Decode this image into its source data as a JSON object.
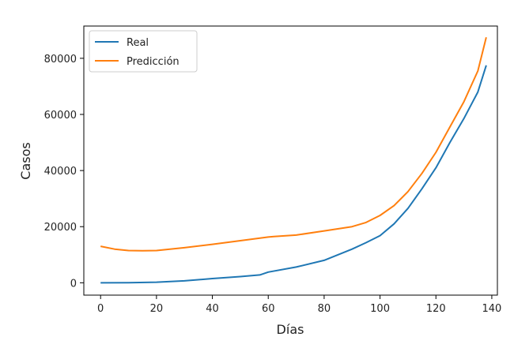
{
  "chart_data": {
    "type": "line",
    "xlabel": "Días",
    "ylabel": "Casos",
    "xlim": [
      -6,
      142
    ],
    "ylim": [
      -4400,
      91500
    ],
    "xticks": [
      0,
      20,
      40,
      60,
      80,
      100,
      120,
      140
    ],
    "yticks": [
      0,
      20000,
      40000,
      60000,
      80000
    ],
    "legend_position": "top-left",
    "grid": false,
    "series": [
      {
        "name": "Real",
        "color": "#1f77b4",
        "x": [
          0,
          10,
          20,
          30,
          40,
          50,
          57,
          60,
          70,
          80,
          90,
          95,
          100,
          105,
          110,
          115,
          120,
          125,
          130,
          135,
          138
        ],
        "y": [
          0,
          50,
          200,
          700,
          1500,
          2200,
          2800,
          3800,
          5600,
          8000,
          12000,
          14300,
          16800,
          21000,
          26500,
          33500,
          41000,
          50000,
          58500,
          68000,
          77500
        ]
      },
      {
        "name": "Predicción",
        "color": "#ff7f0e",
        "x": [
          0,
          5,
          10,
          15,
          20,
          30,
          40,
          50,
          60,
          62,
          70,
          80,
          90,
          95,
          100,
          105,
          110,
          115,
          120,
          125,
          130,
          135,
          138
        ],
        "y": [
          13000,
          12000,
          11500,
          11400,
          11500,
          12500,
          13700,
          15000,
          16300,
          16500,
          17000,
          18500,
          20000,
          21500,
          24000,
          27500,
          32500,
          39000,
          46500,
          55500,
          64500,
          75500,
          87500
        ]
      }
    ]
  }
}
